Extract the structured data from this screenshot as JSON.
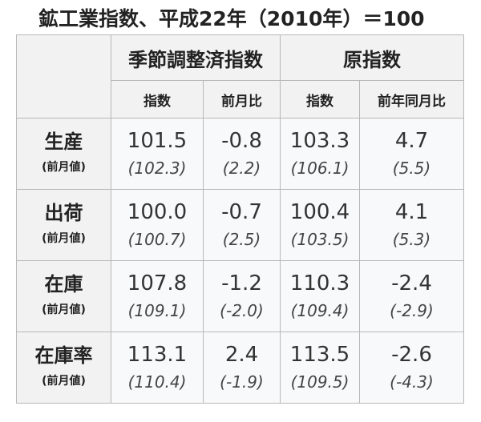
{
  "title": "鉱工業指数、平成22年（2010年）＝100",
  "header": {
    "group1": "季節調整済指数",
    "group2": "原指数",
    "cols": [
      "指数",
      "前月比",
      "指数",
      "前年同月比"
    ]
  },
  "prev_label": "(前月値)",
  "rows": [
    {
      "label": "生産",
      "values": [
        "101.5",
        "-0.8",
        "103.3",
        "4.7"
      ],
      "prev": [
        "(102.3)",
        "(2.2)",
        "(106.1)",
        "(5.5)"
      ]
    },
    {
      "label": "出荷",
      "values": [
        "100.0",
        "-0.7",
        "100.4",
        "4.1"
      ],
      "prev": [
        "(100.7)",
        "(2.5)",
        "(103.5)",
        "(5.3)"
      ]
    },
    {
      "label": "在庫",
      "values": [
        "107.8",
        "-1.2",
        "110.3",
        "-2.4"
      ],
      "prev": [
        "(109.1)",
        "(-2.0)",
        "(109.4)",
        "(-2.9)"
      ]
    },
    {
      "label": "在庫率",
      "values": [
        "113.1",
        "2.4",
        "113.5",
        "-2.6"
      ],
      "prev": [
        "(110.4)",
        "(-1.9)",
        "(109.5)",
        "(-4.3)"
      ]
    }
  ]
}
